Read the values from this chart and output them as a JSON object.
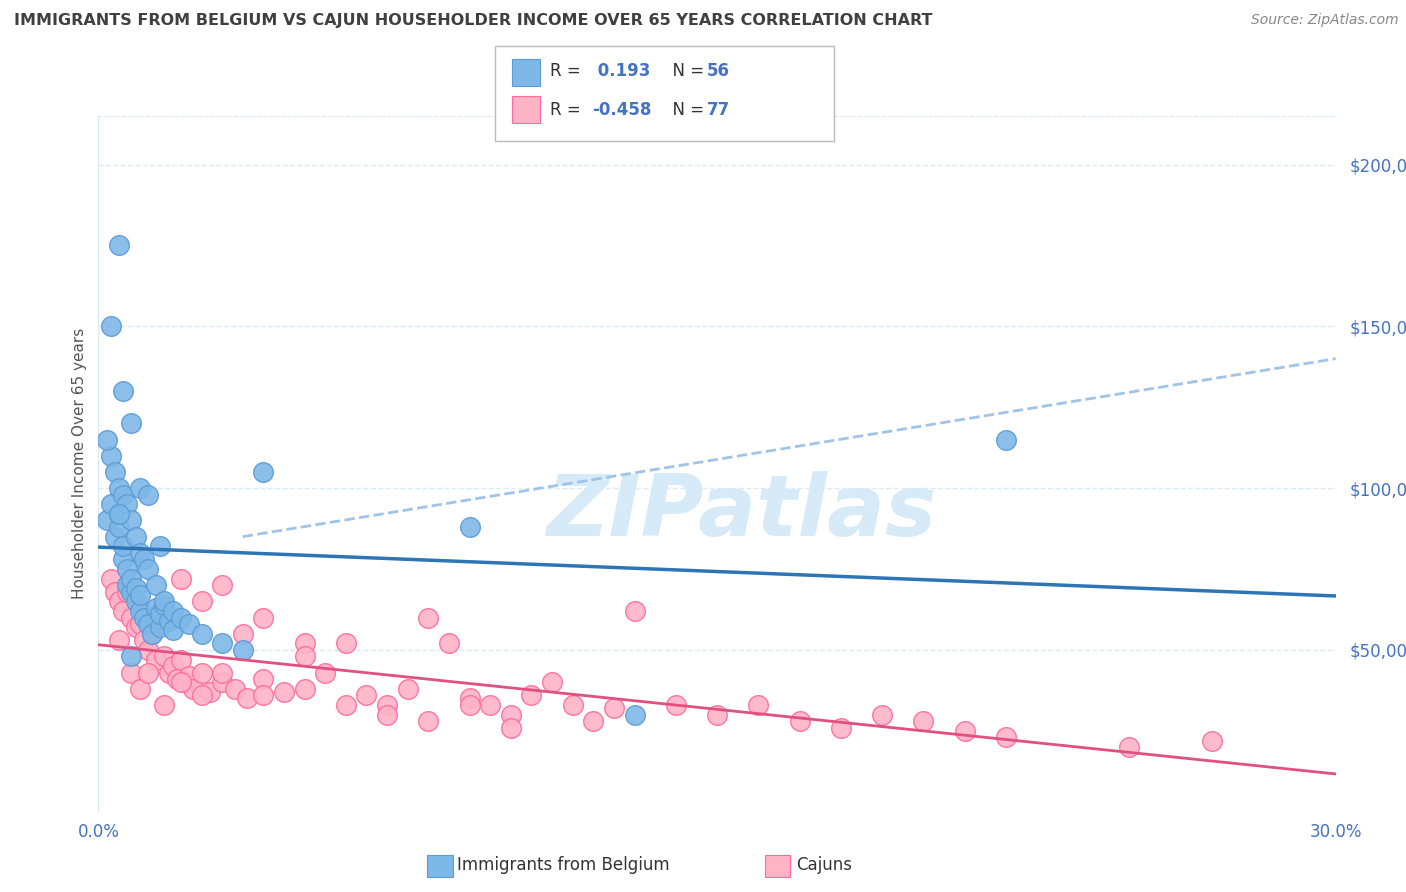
{
  "title": "IMMIGRANTS FROM BELGIUM VS CAJUN HOUSEHOLDER INCOME OVER 65 YEARS CORRELATION CHART",
  "source": "Source: ZipAtlas.com",
  "ylabel": "Householder Income Over 65 years",
  "xmin": 0.0,
  "xmax": 0.3,
  "ymin": 0,
  "ymax": 215000,
  "yticks": [
    0,
    50000,
    100000,
    150000,
    200000
  ],
  "ytick_labels": [
    "",
    "$50,000",
    "$100,000",
    "$150,000",
    "$200,000"
  ],
  "xticks": [
    0.0,
    0.05,
    0.1,
    0.15,
    0.2,
    0.25,
    0.3
  ],
  "xtick_labels": [
    "0.0%",
    "",
    "",
    "",
    "",
    "",
    "30.0%"
  ],
  "legend_bottom_label1": "Immigrants from Belgium",
  "legend_bottom_label2": "Cajuns",
  "blue_color": "#7EB8E8",
  "blue_edge_color": "#5B9BD5",
  "pink_color": "#FFB3C6",
  "pink_edge_color": "#FF6B9D",
  "blue_line_color": "#2E75B6",
  "pink_line_color": "#E05080",
  "dashed_line_color": "#A0C4E8",
  "watermark_color": "#D6EAF8",
  "watermark_text": "ZIPatlas",
  "background_color": "#FFFFFF",
  "title_color": "#404040",
  "axis_color": "#4472C4",
  "grid_color": "#DAEAF7",
  "blue_scatter_x": [
    0.002,
    0.003,
    0.004,
    0.005,
    0.005,
    0.006,
    0.006,
    0.007,
    0.007,
    0.008,
    0.008,
    0.009,
    0.009,
    0.01,
    0.01,
    0.011,
    0.012,
    0.013,
    0.014,
    0.015,
    0.015,
    0.016,
    0.017,
    0.018,
    0.003,
    0.004,
    0.005,
    0.006,
    0.007,
    0.008,
    0.009,
    0.01,
    0.011,
    0.012,
    0.014,
    0.016,
    0.018,
    0.02,
    0.022,
    0.025,
    0.03,
    0.035,
    0.002,
    0.003,
    0.005,
    0.006,
    0.008,
    0.01,
    0.012,
    0.015,
    0.09,
    0.13,
    0.22,
    0.04,
    0.005,
    0.008
  ],
  "blue_scatter_y": [
    90000,
    95000,
    85000,
    88000,
    92000,
    78000,
    82000,
    70000,
    75000,
    68000,
    72000,
    65000,
    69000,
    62000,
    67000,
    60000,
    58000,
    55000,
    63000,
    57000,
    61000,
    64000,
    59000,
    56000,
    110000,
    105000,
    100000,
    98000,
    95000,
    90000,
    85000,
    80000,
    78000,
    75000,
    70000,
    65000,
    62000,
    60000,
    58000,
    55000,
    52000,
    50000,
    115000,
    150000,
    175000,
    130000,
    120000,
    100000,
    98000,
    82000,
    88000,
    30000,
    115000,
    105000,
    92000,
    48000
  ],
  "pink_scatter_x": [
    0.003,
    0.004,
    0.005,
    0.006,
    0.007,
    0.008,
    0.009,
    0.01,
    0.011,
    0.012,
    0.013,
    0.014,
    0.015,
    0.016,
    0.017,
    0.018,
    0.019,
    0.02,
    0.021,
    0.022,
    0.023,
    0.025,
    0.027,
    0.03,
    0.033,
    0.036,
    0.04,
    0.045,
    0.05,
    0.055,
    0.06,
    0.065,
    0.07,
    0.075,
    0.08,
    0.085,
    0.09,
    0.095,
    0.1,
    0.105,
    0.11,
    0.115,
    0.12,
    0.125,
    0.13,
    0.14,
    0.15,
    0.16,
    0.17,
    0.18,
    0.19,
    0.2,
    0.21,
    0.22,
    0.005,
    0.008,
    0.01,
    0.012,
    0.016,
    0.02,
    0.025,
    0.03,
    0.04,
    0.05,
    0.06,
    0.07,
    0.08,
    0.09,
    0.1,
    0.025,
    0.03,
    0.035,
    0.04,
    0.05,
    0.25,
    0.27,
    0.02
  ],
  "pink_scatter_y": [
    72000,
    68000,
    65000,
    62000,
    68000,
    60000,
    57000,
    58000,
    53000,
    50000,
    55000,
    47000,
    62000,
    48000,
    43000,
    45000,
    41000,
    47000,
    40000,
    42000,
    38000,
    43000,
    37000,
    40000,
    38000,
    35000,
    41000,
    37000,
    52000,
    43000,
    52000,
    36000,
    33000,
    38000,
    60000,
    52000,
    35000,
    33000,
    30000,
    36000,
    40000,
    33000,
    28000,
    32000,
    62000,
    33000,
    30000,
    33000,
    28000,
    26000,
    30000,
    28000,
    25000,
    23000,
    53000,
    43000,
    38000,
    43000,
    33000,
    40000,
    36000,
    43000,
    36000,
    38000,
    33000,
    30000,
    28000,
    33000,
    26000,
    65000,
    70000,
    55000,
    60000,
    48000,
    20000,
    22000,
    72000
  ]
}
